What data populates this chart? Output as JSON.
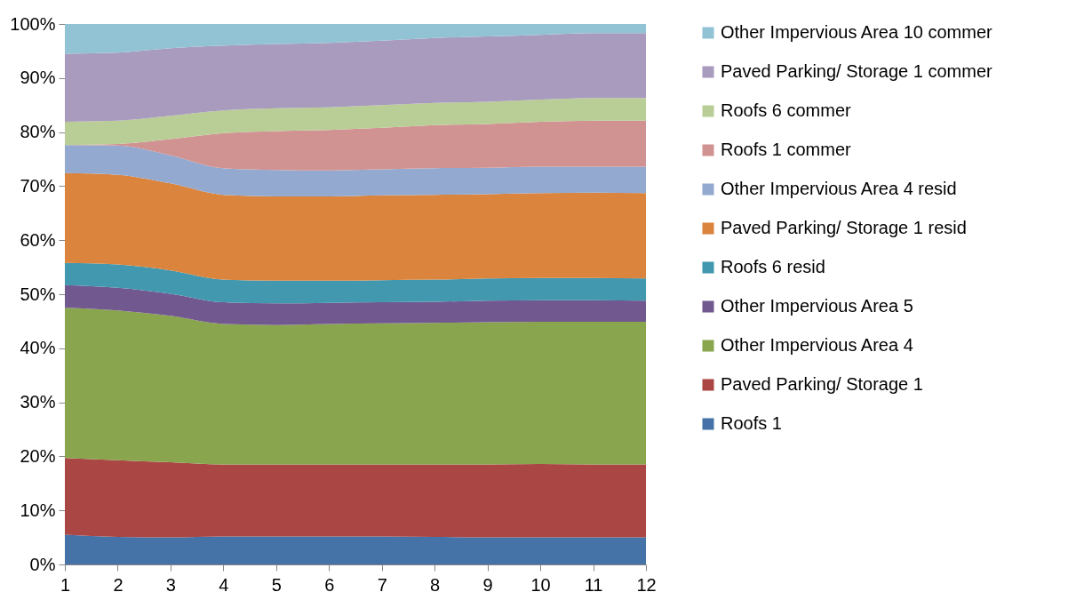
{
  "chart_data": {
    "type": "area",
    "stacked": true,
    "legend": "right",
    "grid": false,
    "x": [
      1,
      2,
      3,
      4,
      5,
      6,
      7,
      8,
      9,
      10,
      11,
      12
    ],
    "xlim": [
      1,
      12
    ],
    "xticks": [
      1,
      2,
      3,
      4,
      5,
      6,
      7,
      8,
      9,
      10,
      11,
      12
    ],
    "ylim": [
      0,
      100
    ],
    "yticks": [
      {
        "value": 0,
        "label": "0%"
      },
      {
        "value": 10,
        "label": "10%"
      },
      {
        "value": 20,
        "label": "20%"
      },
      {
        "value": 30,
        "label": "30%"
      },
      {
        "value": 40,
        "label": "40%"
      },
      {
        "value": 50,
        "label": "50%"
      },
      {
        "value": 60,
        "label": "60%"
      },
      {
        "value": 70,
        "label": "70%"
      },
      {
        "value": 80,
        "label": "80%"
      },
      {
        "value": 90,
        "label": "90%"
      },
      {
        "value": 100,
        "label": "100%"
      }
    ],
    "series": [
      {
        "name": "Roofs 1",
        "color": "#4572a7",
        "values": [
          5.5,
          5.1,
          5.0,
          5.2,
          5.2,
          5.2,
          5.2,
          5.1,
          5.0,
          5.0,
          5.0,
          5.0
        ]
      },
      {
        "name": "Paved Parking/ Storage 1",
        "color": "#aa4643",
        "values": [
          14.2,
          14.2,
          13.9,
          13.3,
          13.3,
          13.3,
          13.3,
          13.4,
          13.5,
          13.6,
          13.5,
          13.5
        ]
      },
      {
        "name": "Other Impervious Area 4",
        "color": "#89a54e",
        "values": [
          27.8,
          27.7,
          27.1,
          26.0,
          25.8,
          26.0,
          26.1,
          26.2,
          26.3,
          26.3,
          26.4,
          26.4
        ]
      },
      {
        "name": "Other Impervious Area 5",
        "color": "#71588f",
        "values": [
          4.2,
          4.2,
          4.1,
          4.0,
          4.0,
          3.9,
          3.9,
          3.9,
          4.0,
          4.0,
          4.0,
          3.9
        ]
      },
      {
        "name": "Roofs 6 resid",
        "color": "#4198af",
        "values": [
          4.1,
          4.3,
          4.3,
          4.2,
          4.2,
          4.1,
          4.1,
          4.1,
          4.1,
          4.1,
          4.1,
          4.1
        ]
      },
      {
        "name": "Paved Parking/ Storage 1 resid",
        "color": "#db843d",
        "values": [
          16.6,
          16.6,
          16.1,
          15.7,
          15.6,
          15.6,
          15.7,
          15.7,
          15.6,
          15.7,
          15.8,
          15.8
        ]
      },
      {
        "name": "Other Impervious Area 4 resid",
        "color": "#93a9cf",
        "values": [
          5.2,
          5.4,
          5.2,
          4.9,
          4.9,
          4.8,
          4.8,
          4.9,
          4.9,
          4.9,
          4.8,
          4.9
        ]
      },
      {
        "name": "Roofs 1 commer",
        "color": "#d19392",
        "values": [
          0,
          0.3,
          3.0,
          6.5,
          7.2,
          7.5,
          7.7,
          8.0,
          8.1,
          8.3,
          8.5,
          8.5
        ]
      },
      {
        "name": "Roofs 6 commer",
        "color": "#b9cd96",
        "values": [
          4.3,
          4.3,
          4.3,
          4.2,
          4.2,
          4.2,
          4.2,
          4.1,
          4.1,
          4.1,
          4.2,
          4.2
        ]
      },
      {
        "name": "Paved Parking/ Storage 1 commer",
        "color": "#a99bbd",
        "values": [
          12.6,
          12.6,
          12.5,
          12.0,
          11.9,
          11.9,
          11.9,
          12.0,
          12.1,
          12.0,
          12.0,
          12.0
        ]
      },
      {
        "name": "Other Impervious Area 10 commer",
        "color": "#92c3d5",
        "values": [
          5.5,
          5.3,
          4.5,
          4.0,
          3.7,
          3.5,
          3.1,
          2.6,
          2.3,
          2.0,
          1.7,
          1.7
        ]
      }
    ]
  }
}
